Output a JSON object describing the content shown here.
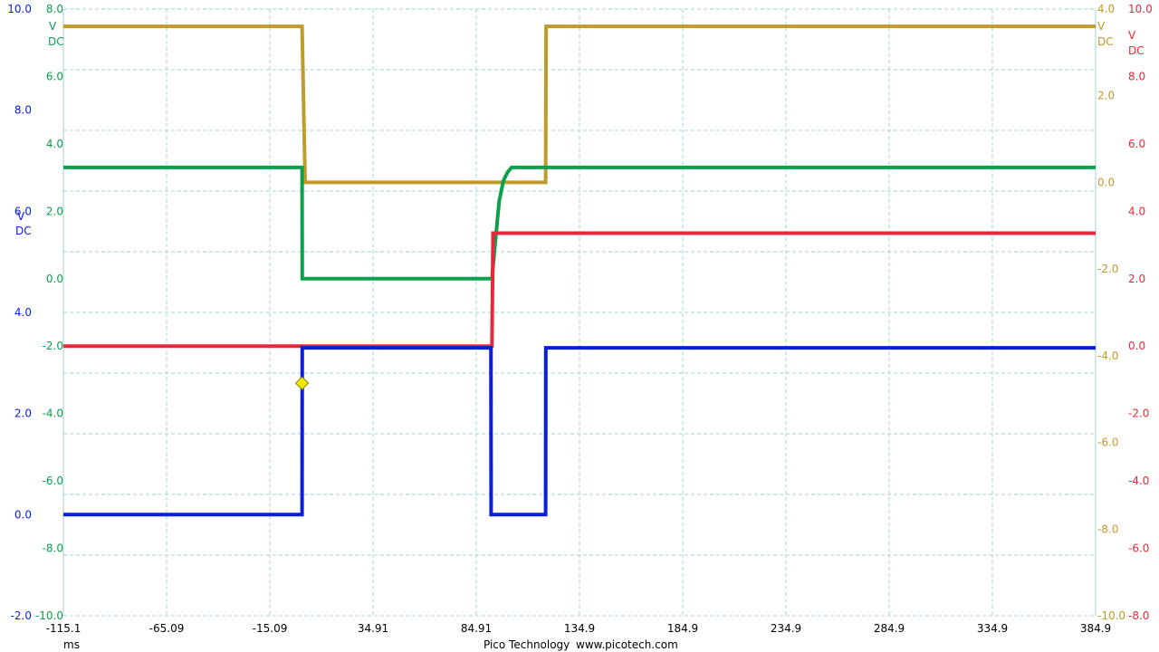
{
  "footer": {
    "brand": "Pico Technology",
    "url": "www.picotech.com"
  },
  "chart_data": {
    "type": "line",
    "title": "",
    "grid": true,
    "x_axis": {
      "unit": "ms",
      "range": [
        -115.1,
        384.9
      ],
      "ticks": [
        "-115.1",
        "-65.09",
        "-15.09",
        "34.91",
        "84.91",
        "134.9",
        "184.9",
        "234.9",
        "284.9",
        "334.9",
        "384.9"
      ]
    },
    "axes": [
      {
        "id": "blue",
        "side": "left",
        "unit_label": [
          "V",
          "DC"
        ],
        "color": "#0b1fd6",
        "range": [
          -2.0,
          10.0
        ],
        "ticks": [
          "10.0",
          "8.0",
          "6.0",
          "4.0",
          "2.0",
          "0.0",
          "-2.0"
        ]
      },
      {
        "id": "green",
        "side": "left",
        "unit_label": [
          "V",
          "DC"
        ],
        "color": "#0aa04c",
        "range": [
          -10.0,
          8.0
        ],
        "ticks": [
          "8.0",
          "6.0",
          "4.0",
          "2.0",
          "0.0",
          "-2.0",
          "-4.0",
          "-6.0",
          "-8.0",
          "-10.0"
        ]
      },
      {
        "id": "gold",
        "side": "right",
        "unit_label": [
          "V",
          "DC"
        ],
        "color": "#c09a2a",
        "range": [
          -10.0,
          4.0
        ],
        "ticks": [
          "4.0",
          "2.0",
          "0.0",
          "-2.0",
          "-4.0",
          "-6.0",
          "-8.0",
          "-10.0"
        ]
      },
      {
        "id": "red",
        "side": "right",
        "unit_label": [
          "V",
          "DC"
        ],
        "color": "#e8283a",
        "range": [
          -8.0,
          10.0
        ],
        "ticks": [
          "10.0",
          "8.0",
          "6.0",
          "4.0",
          "2.0",
          "0.0",
          "-2.0",
          "-4.0",
          "-6.0",
          "-8.0"
        ]
      }
    ],
    "series": [
      {
        "axis": "gold",
        "color": "#c09a2a",
        "x": [
          -115.1,
          0.5,
          2.0,
          118.5,
          118.7,
          384.9
        ],
        "y": [
          3.6,
          3.6,
          0.0,
          0.0,
          3.6,
          3.6
        ]
      },
      {
        "axis": "green",
        "color": "#0aa04c",
        "x": [
          -115.1,
          0.5,
          0.6,
          92.5,
          94.0,
          96.0,
          98.0,
          100.0,
          102.0,
          384.9
        ],
        "y": [
          3.3,
          3.3,
          0.0,
          0.0,
          1.0,
          2.3,
          2.9,
          3.15,
          3.3,
          3.3
        ]
      },
      {
        "axis": "red",
        "color": "#e8283a",
        "x": [
          -115.1,
          92.5,
          93.0,
          384.9
        ],
        "y": [
          0.0,
          0.0,
          3.35,
          3.35
        ]
      },
      {
        "axis": "blue",
        "color": "#0b1fd6",
        "x": [
          -115.1,
          0.5,
          0.6,
          92.0,
          92.1,
          118.5,
          118.6,
          384.9
        ],
        "y": [
          0.0,
          0.0,
          3.3,
          3.3,
          0.0,
          0.0,
          3.3,
          3.3
        ]
      }
    ],
    "trigger_marker": {
      "axis": "blue",
      "x": 0.5,
      "y": 2.6,
      "color": "#f2e600"
    }
  }
}
